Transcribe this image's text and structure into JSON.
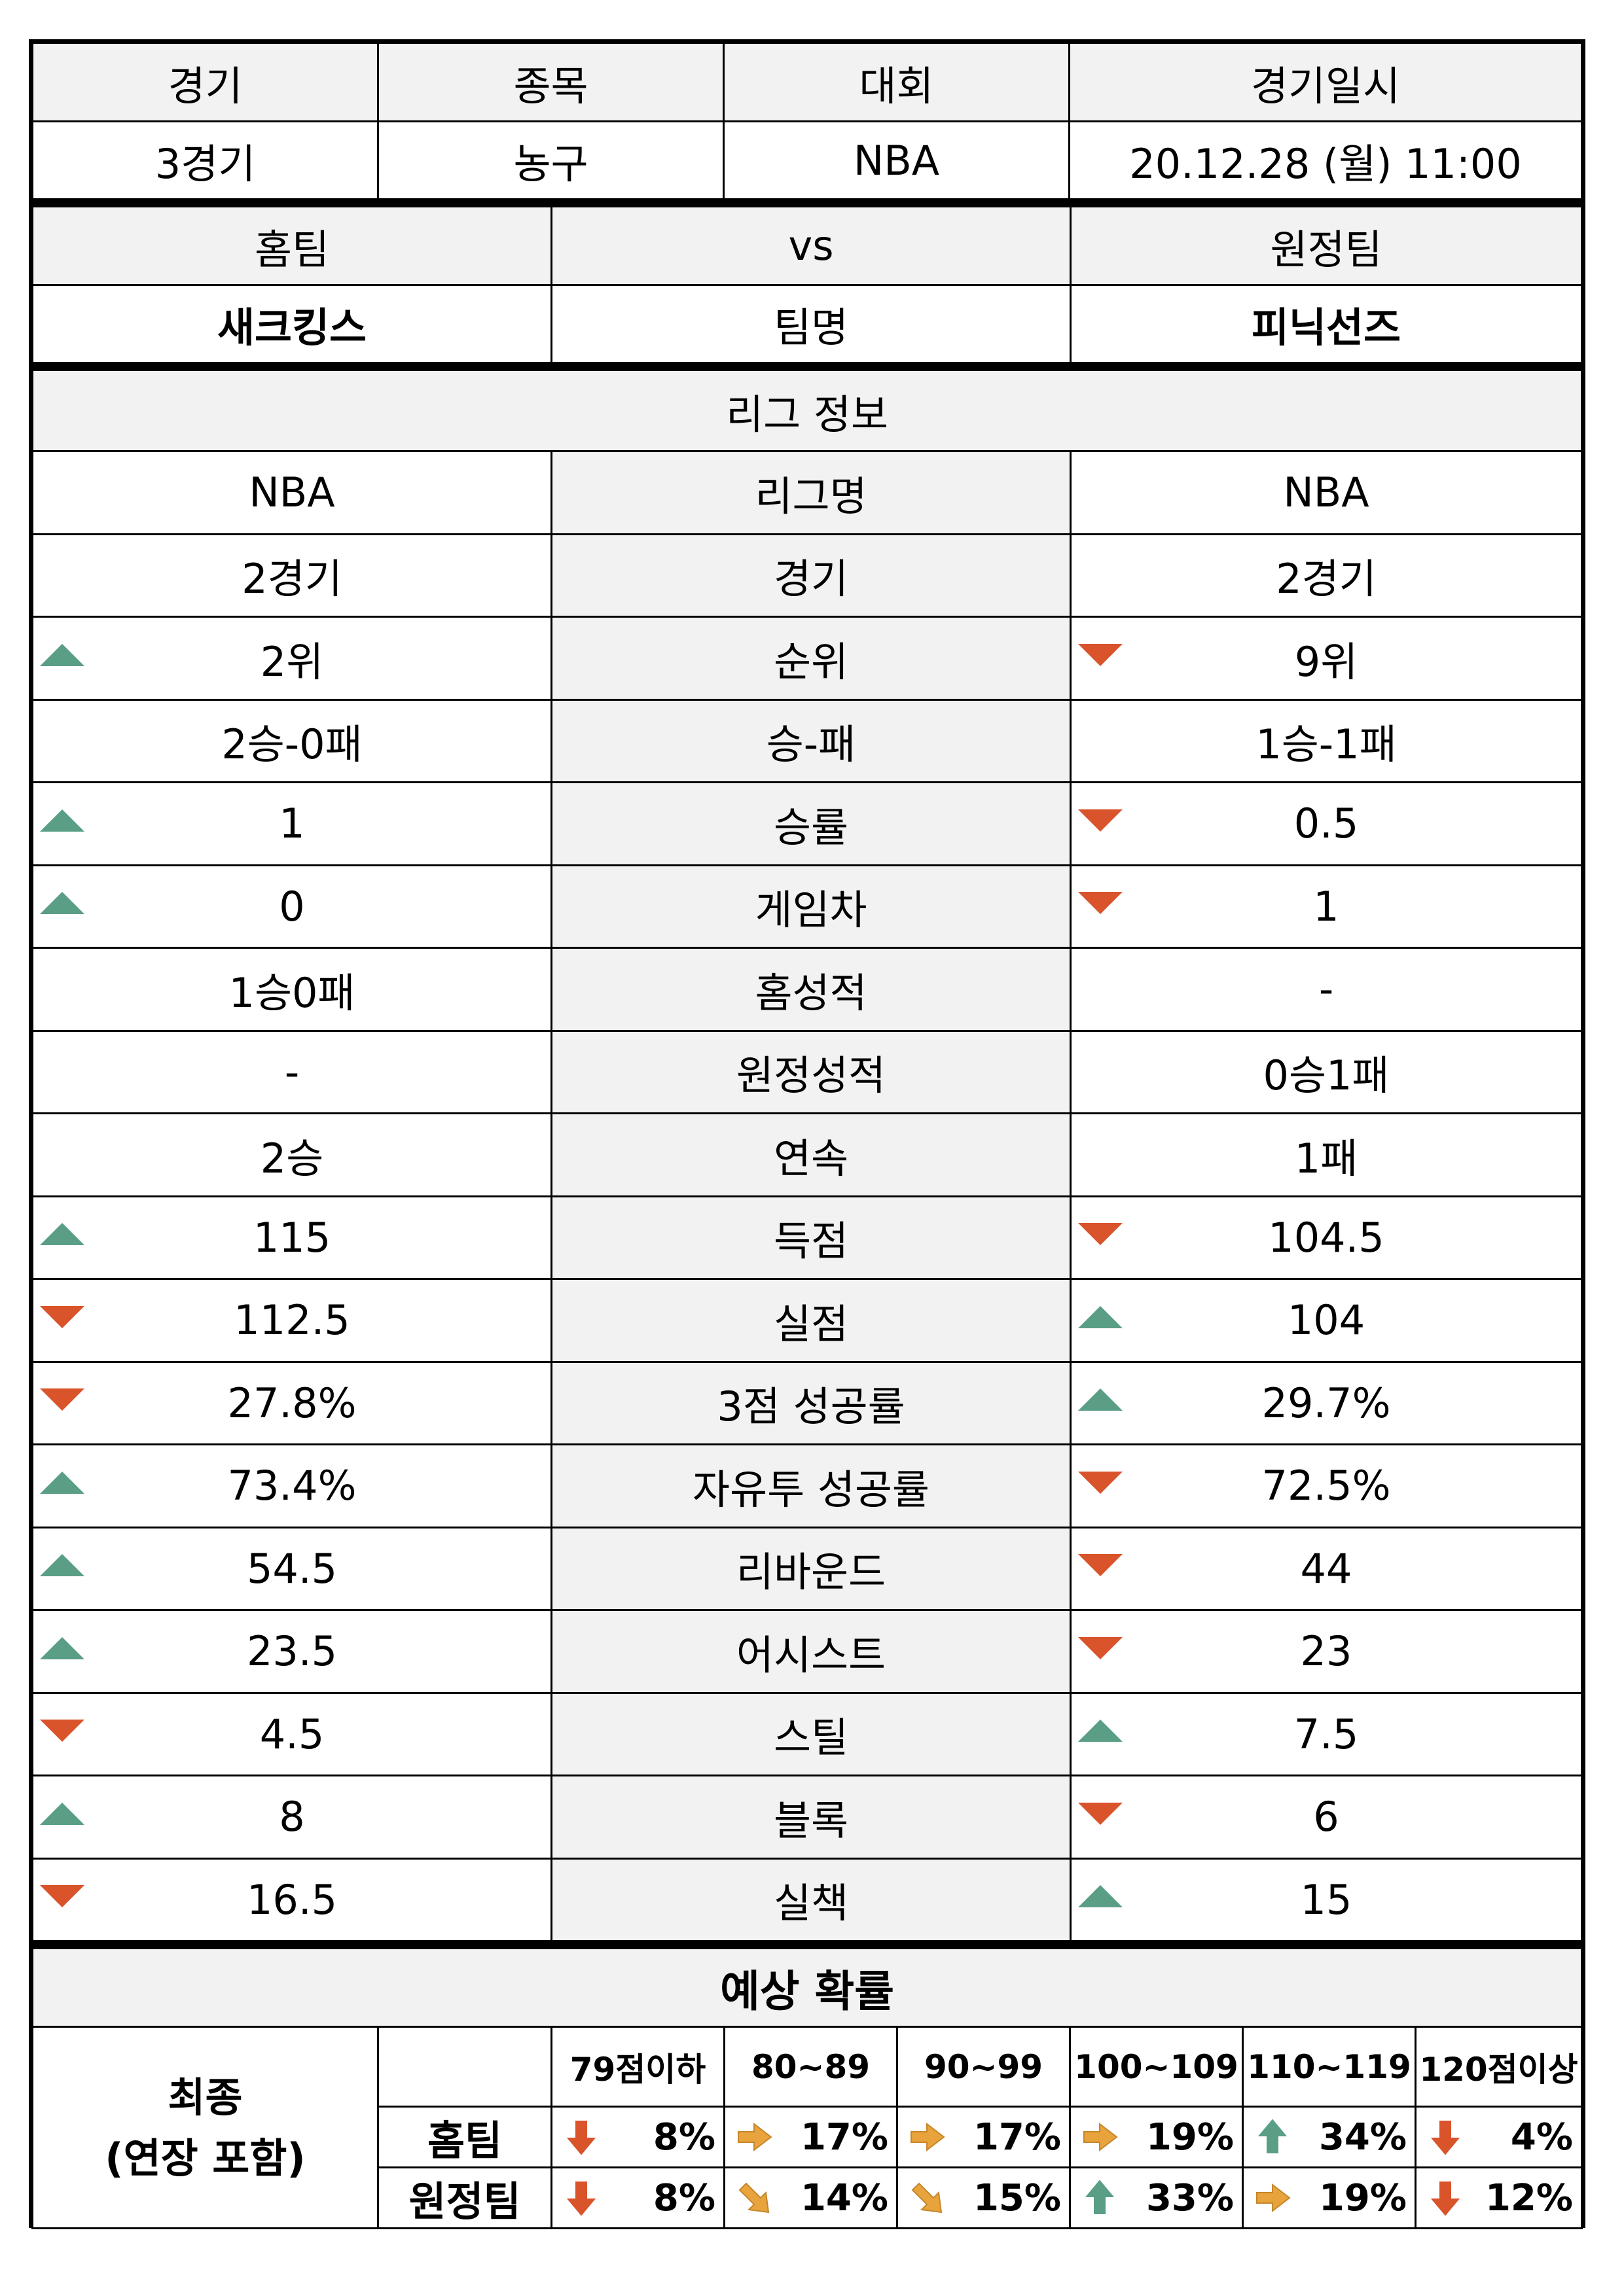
{
  "match": {
    "headers": [
      "경기",
      "종목",
      "대회",
      "경기일시"
    ],
    "values": [
      "3경기",
      "농구",
      "NBA",
      "20.12.28 (월) 11:00"
    ]
  },
  "teams": {
    "home_label": "홈팀",
    "vs": "vs",
    "away_label": "원정팀",
    "home_name": "새크킹스",
    "name_label": "팀명",
    "away_name": "피닉선즈"
  },
  "league": {
    "title": "리그 정보",
    "rows": [
      {
        "home": "NBA",
        "label": "리그명",
        "away": "NBA",
        "home_trend": "",
        "away_trend": ""
      },
      {
        "home": "2경기",
        "label": "경기",
        "away": "2경기",
        "home_trend": "",
        "away_trend": ""
      },
      {
        "home": "2위",
        "label": "순위",
        "away": "9위",
        "home_trend": "up",
        "away_trend": "down"
      },
      {
        "home": "2승-0패",
        "label": "승-패",
        "away": "1승-1패",
        "home_trend": "",
        "away_trend": ""
      },
      {
        "home": "1",
        "label": "승률",
        "away": "0.5",
        "home_trend": "up",
        "away_trend": "down"
      },
      {
        "home": "0",
        "label": "게임차",
        "away": "1",
        "home_trend": "up",
        "away_trend": "down"
      },
      {
        "home": "1승0패",
        "label": "홈성적",
        "away": "-",
        "home_trend": "",
        "away_trend": ""
      },
      {
        "home": "-",
        "label": "원정성적",
        "away": "0승1패",
        "home_trend": "",
        "away_trend": ""
      },
      {
        "home": "2승",
        "label": "연속",
        "away": "1패",
        "home_trend": "",
        "away_trend": ""
      },
      {
        "home": "115",
        "label": "득점",
        "away": "104.5",
        "home_trend": "up",
        "away_trend": "down"
      },
      {
        "home": "112.5",
        "label": "실점",
        "away": "104",
        "home_trend": "down",
        "away_trend": "up"
      },
      {
        "home": "27.8%",
        "label": "3점 성공률",
        "away": "29.7%",
        "home_trend": "down",
        "away_trend": "up"
      },
      {
        "home": "73.4%",
        "label": "자유투 성공률",
        "away": "72.5%",
        "home_trend": "up",
        "away_trend": "down"
      },
      {
        "home": "54.5",
        "label": "리바운드",
        "away": "44",
        "home_trend": "up",
        "away_trend": "down"
      },
      {
        "home": "23.5",
        "label": "어시스트",
        "away": "23",
        "home_trend": "up",
        "away_trend": "down"
      },
      {
        "home": "4.5",
        "label": "스틸",
        "away": "7.5",
        "home_trend": "down",
        "away_trend": "up"
      },
      {
        "home": "8",
        "label": "블록",
        "away": "6",
        "home_trend": "up",
        "away_trend": "down"
      },
      {
        "home": "16.5",
        "label": "실책",
        "away": "15",
        "home_trend": "down",
        "away_trend": "up"
      }
    ]
  },
  "prediction": {
    "title": "예상 확률",
    "final_label": "최종",
    "final_sub": "(연장 포함)",
    "ranges": [
      "79점이하",
      "80~89",
      "90~99",
      "100~109",
      "110~119",
      "120점이상"
    ],
    "rows": [
      {
        "label": "홈팀",
        "values": [
          "8%",
          "17%",
          "17%",
          "19%",
          "34%",
          "4%"
        ],
        "icons": [
          "arrow-down-icon",
          "arrow-right-icon",
          "arrow-right-icon",
          "arrow-right-icon",
          "arrow-up-icon",
          "arrow-down-icon"
        ]
      },
      {
        "label": "원정팀",
        "values": [
          "8%",
          "14%",
          "15%",
          "33%",
          "19%",
          "12%"
        ],
        "icons": [
          "arrow-down-icon",
          "arrow-down-right-icon",
          "arrow-down-right-icon",
          "arrow-up-icon",
          "arrow-right-icon",
          "arrow-down-icon"
        ]
      }
    ]
  },
  "colors": {
    "up": "#5a9e86",
    "down": "#d9532b",
    "neutral": "#e8a33d",
    "header_bg": "#f2f2f2"
  }
}
